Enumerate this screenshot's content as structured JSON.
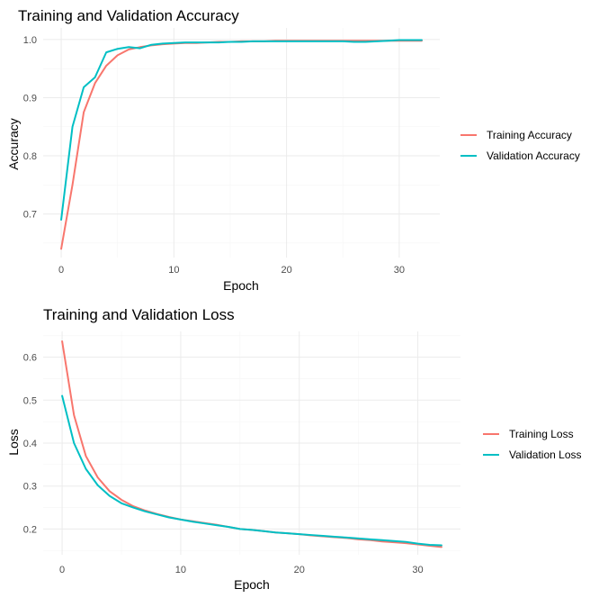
{
  "chart_data": [
    {
      "type": "line",
      "title": "Training and Validation Accuracy",
      "xlabel": "Epoch",
      "ylabel": "Accuracy",
      "xlim": [
        -1.6,
        33.6
      ],
      "ylim": [
        0.625,
        1.02
      ],
      "x_ticks": [
        0,
        10,
        20,
        30
      ],
      "y_ticks": [
        0.7,
        0.8,
        0.9,
        1.0
      ],
      "x_tick_labels": [
        "0",
        "10",
        "20",
        "30"
      ],
      "y_tick_labels": [
        "0.7",
        "0.8",
        "0.9",
        "1.0"
      ],
      "grid": true,
      "legend_position": "right",
      "x": [
        0,
        1,
        2,
        3,
        4,
        5,
        6,
        7,
        8,
        9,
        10,
        11,
        12,
        13,
        14,
        15,
        16,
        17,
        18,
        19,
        20,
        21,
        22,
        23,
        24,
        25,
        26,
        27,
        28,
        29,
        30,
        31,
        32
      ],
      "series": [
        {
          "name": "Training Accuracy",
          "color": "#F8766D",
          "values": [
            0.64,
            0.75,
            0.875,
            0.925,
            0.955,
            0.973,
            0.983,
            0.987,
            0.99,
            0.992,
            0.993,
            0.994,
            0.994,
            0.995,
            0.996,
            0.996,
            0.997,
            0.997,
            0.997,
            0.998,
            0.998,
            0.998,
            0.998,
            0.998,
            0.998,
            0.998,
            0.998,
            0.998,
            0.998,
            0.998,
            0.998,
            0.998,
            0.998
          ]
        },
        {
          "name": "Validation Accuracy",
          "color": "#00BFC4",
          "values": [
            0.69,
            0.85,
            0.918,
            0.935,
            0.978,
            0.984,
            0.987,
            0.985,
            0.991,
            0.993,
            0.994,
            0.995,
            0.995,
            0.995,
            0.995,
            0.996,
            0.996,
            0.997,
            0.997,
            0.997,
            0.997,
            0.997,
            0.997,
            0.997,
            0.997,
            0.997,
            0.996,
            0.996,
            0.997,
            0.998,
            0.999,
            0.999,
            0.999
          ]
        }
      ]
    },
    {
      "type": "line",
      "title": "Training and Validation Loss",
      "xlabel": "Epoch",
      "ylabel": "Loss",
      "xlim": [
        -1.6,
        33.6
      ],
      "ylim": [
        0.14,
        0.66
      ],
      "x_ticks": [
        0,
        10,
        20,
        30
      ],
      "y_ticks": [
        0.2,
        0.3,
        0.4,
        0.5,
        0.6
      ],
      "x_tick_labels": [
        "0",
        "10",
        "20",
        "30"
      ],
      "y_tick_labels": [
        "0.2",
        "0.3",
        "0.4",
        "0.5",
        "0.6"
      ],
      "grid": true,
      "legend_position": "right",
      "x": [
        0,
        1,
        2,
        3,
        4,
        5,
        6,
        7,
        8,
        9,
        10,
        11,
        12,
        13,
        14,
        15,
        16,
        17,
        18,
        19,
        20,
        21,
        22,
        23,
        24,
        25,
        26,
        27,
        28,
        29,
        30,
        31,
        32
      ],
      "series": [
        {
          "name": "Training Loss",
          "color": "#F8766D",
          "values": [
            0.637,
            0.465,
            0.37,
            0.32,
            0.288,
            0.268,
            0.253,
            0.243,
            0.235,
            0.228,
            0.222,
            0.218,
            0.214,
            0.21,
            0.205,
            0.2,
            0.198,
            0.195,
            0.192,
            0.19,
            0.188,
            0.185,
            0.183,
            0.181,
            0.179,
            0.176,
            0.174,
            0.171,
            0.169,
            0.167,
            0.164,
            0.161,
            0.158
          ]
        },
        {
          "name": "Validation Loss",
          "color": "#00BFC4",
          "values": [
            0.51,
            0.4,
            0.34,
            0.302,
            0.277,
            0.26,
            0.25,
            0.241,
            0.234,
            0.227,
            0.222,
            0.217,
            0.213,
            0.209,
            0.205,
            0.2,
            0.198,
            0.195,
            0.192,
            0.19,
            0.188,
            0.186,
            0.184,
            0.182,
            0.18,
            0.178,
            0.176,
            0.174,
            0.172,
            0.17,
            0.166,
            0.163,
            0.162
          ]
        }
      ]
    }
  ]
}
